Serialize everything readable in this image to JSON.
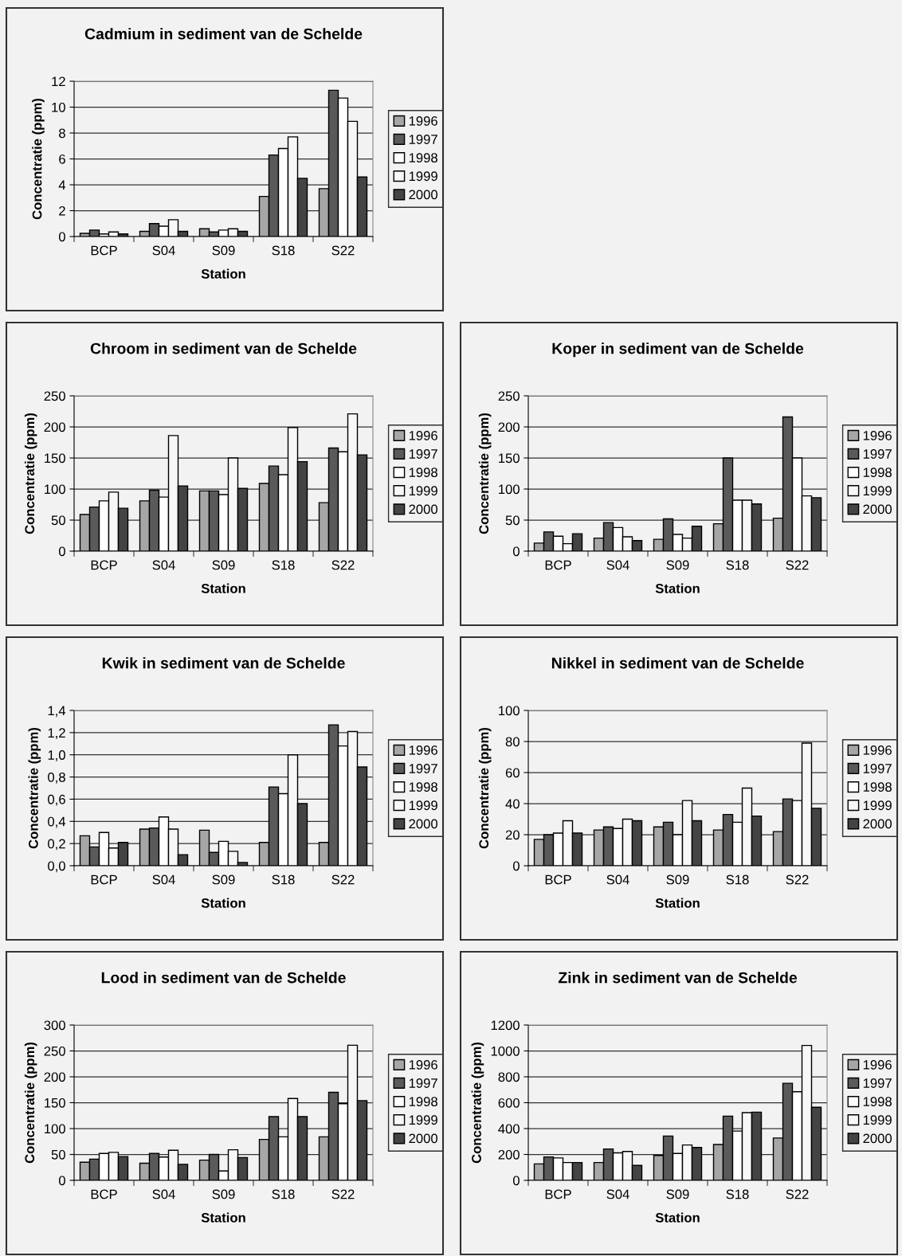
{
  "chart_data": [
    {
      "type": "bar",
      "title": "Cadmium in sediment van de Schelde",
      "xlabel": "Station",
      "ylabel": "Concentratie (ppm)",
      "categories": [
        "BCP",
        "S04",
        "S09",
        "S18",
        "S22"
      ],
      "ylim": [
        0,
        12
      ],
      "yticks": [
        0,
        2,
        4,
        6,
        8,
        10,
        12
      ],
      "grid": "y",
      "legend": "right",
      "series": [
        {
          "name": "1996",
          "color": "#a6a6a6",
          "values": [
            0.25,
            0.4,
            0.6,
            3.1,
            3.7
          ]
        },
        {
          "name": "1997",
          "color": "#5a5a5a",
          "values": [
            0.5,
            1.0,
            0.35,
            6.3,
            11.3
          ]
        },
        {
          "name": "1998",
          "color": "#ffffff",
          "values": [
            0.2,
            0.8,
            0.5,
            6.8,
            10.7
          ]
        },
        {
          "name": "1999",
          "color": "#f7f7f7",
          "values": [
            0.35,
            1.3,
            0.6,
            7.7,
            8.9
          ]
        },
        {
          "name": "2000",
          "color": "#444444",
          "values": [
            0.2,
            0.4,
            0.4,
            4.5,
            4.6
          ]
        }
      ]
    },
    {
      "type": "bar",
      "title": "Chroom in sediment van de Schelde",
      "xlabel": "Station",
      "ylabel": "Concentratie (ppm)",
      "categories": [
        "BCP",
        "S04",
        "S09",
        "S18",
        "S22"
      ],
      "ylim": [
        0,
        250
      ],
      "yticks": [
        0,
        50,
        100,
        150,
        200,
        250
      ],
      "grid": "y",
      "legend": "right",
      "series": [
        {
          "name": "1996",
          "color": "#a6a6a6",
          "values": [
            59,
            81,
            97,
            109,
            78
          ]
        },
        {
          "name": "1997",
          "color": "#5a5a5a",
          "values": [
            71,
            98,
            97,
            137,
            166
          ]
        },
        {
          "name": "1998",
          "color": "#ffffff",
          "values": [
            81,
            87,
            91,
            123,
            160
          ]
        },
        {
          "name": "1999",
          "color": "#f7f7f7",
          "values": [
            95,
            186,
            150,
            199,
            221
          ]
        },
        {
          "name": "2000",
          "color": "#444444",
          "values": [
            69,
            105,
            101,
            144,
            155
          ]
        }
      ]
    },
    {
      "type": "bar",
      "title": "Koper in sediment van de Schelde",
      "xlabel": "Station",
      "ylabel": "Concentratie (ppm)",
      "categories": [
        "BCP",
        "S04",
        "S09",
        "S18",
        "S22"
      ],
      "ylim": [
        0,
        250
      ],
      "yticks": [
        0,
        50,
        100,
        150,
        200,
        250
      ],
      "grid": "y",
      "legend": "right",
      "series": [
        {
          "name": "1996",
          "color": "#a6a6a6",
          "values": [
            13,
            21,
            19,
            44,
            53
          ]
        },
        {
          "name": "1997",
          "color": "#5a5a5a",
          "values": [
            31,
            46,
            52,
            150,
            216
          ]
        },
        {
          "name": "1998",
          "color": "#ffffff",
          "values": [
            24,
            38,
            27,
            82,
            150
          ]
        },
        {
          "name": "1999",
          "color": "#f7f7f7",
          "values": [
            12,
            23,
            21,
            82,
            89
          ]
        },
        {
          "name": "2000",
          "color": "#444444",
          "values": [
            28,
            17,
            40,
            76,
            86
          ]
        }
      ]
    },
    {
      "type": "bar",
      "title": "Kwik in sediment van de Schelde",
      "xlabel": "Station",
      "ylabel": "Concentratie (ppm)",
      "categories": [
        "BCP",
        "S04",
        "S09",
        "S18",
        "S22"
      ],
      "ylim": [
        0,
        1.4
      ],
      "yticks": [
        {
          "value": 0,
          "label": "0,0"
        },
        {
          "value": 0.2,
          "label": "0,2"
        },
        {
          "value": 0.4,
          "label": "0,4"
        },
        {
          "value": 0.6,
          "label": "0,6"
        },
        {
          "value": 0.8,
          "label": "0,8"
        },
        {
          "value": 1.0,
          "label": "1,0"
        },
        {
          "value": 1.2,
          "label": "1,2"
        },
        {
          "value": 1.4,
          "label": "1,4"
        }
      ],
      "grid": "y",
      "legend": "right",
      "series": [
        {
          "name": "1996",
          "color": "#a6a6a6",
          "values": [
            0.27,
            0.33,
            0.32,
            0.21,
            0.21
          ]
        },
        {
          "name": "1997",
          "color": "#5a5a5a",
          "values": [
            0.17,
            0.34,
            0.12,
            0.71,
            1.27
          ]
        },
        {
          "name": "1998",
          "color": "#ffffff",
          "values": [
            0.3,
            0.44,
            0.22,
            0.65,
            1.08
          ]
        },
        {
          "name": "1999",
          "color": "#f7f7f7",
          "values": [
            0.16,
            0.33,
            0.13,
            1.0,
            1.21
          ]
        },
        {
          "name": "2000",
          "color": "#444444",
          "values": [
            0.21,
            0.1,
            0.03,
            0.56,
            0.89
          ]
        }
      ]
    },
    {
      "type": "bar",
      "title": "Nikkel in sediment van de Schelde",
      "xlabel": "Station",
      "ylabel": "Concentratie (ppm)",
      "categories": [
        "BCP",
        "S04",
        "S09",
        "S18",
        "S22"
      ],
      "ylim": [
        0,
        100
      ],
      "yticks": [
        0,
        20,
        40,
        60,
        80,
        100
      ],
      "grid": "y",
      "legend": "right",
      "series": [
        {
          "name": "1996",
          "color": "#a6a6a6",
          "values": [
            17,
            23,
            25,
            23,
            22
          ]
        },
        {
          "name": "1997",
          "color": "#5a5a5a",
          "values": [
            20,
            25,
            28,
            33,
            43
          ]
        },
        {
          "name": "1998",
          "color": "#ffffff",
          "values": [
            21,
            24,
            20,
            28,
            42
          ]
        },
        {
          "name": "1999",
          "color": "#f7f7f7",
          "values": [
            29,
            30,
            42,
            50,
            79
          ]
        },
        {
          "name": "2000",
          "color": "#444444",
          "values": [
            21,
            29,
            29,
            32,
            37
          ]
        }
      ]
    },
    {
      "type": "bar",
      "title": "Lood in sediment van de Schelde",
      "xlabel": "Station",
      "ylabel": "Concentratie (ppm)",
      "categories": [
        "BCP",
        "S04",
        "S09",
        "S18",
        "S22"
      ],
      "ylim": [
        0,
        300
      ],
      "yticks": [
        0,
        50,
        100,
        150,
        200,
        250,
        300
      ],
      "grid": "y",
      "legend": "right",
      "series": [
        {
          "name": "1996",
          "color": "#a6a6a6",
          "values": [
            35,
            33,
            39,
            79,
            84
          ]
        },
        {
          "name": "1997",
          "color": "#5a5a5a",
          "values": [
            41,
            52,
            50,
            123,
            170
          ]
        },
        {
          "name": "1998",
          "color": "#ffffff",
          "values": [
            52,
            45,
            18,
            84,
            148
          ]
        },
        {
          "name": "1999",
          "color": "#f7f7f7",
          "values": [
            54,
            58,
            59,
            158,
            261
          ]
        },
        {
          "name": "2000",
          "color": "#444444",
          "values": [
            46,
            31,
            44,
            123,
            154
          ]
        }
      ]
    },
    {
      "type": "bar",
      "title": "Zink in sediment van de Schelde",
      "xlabel": "Station",
      "ylabel": "Concentratie (ppm)",
      "categories": [
        "BCP",
        "S04",
        "S09",
        "S18",
        "S22"
      ],
      "ylim": [
        0,
        1200
      ],
      "yticks": [
        0,
        200,
        400,
        600,
        800,
        1000,
        1200
      ],
      "grid": "y",
      "legend": "right",
      "series": [
        {
          "name": "1996",
          "color": "#a6a6a6",
          "values": [
            127,
            138,
            192,
            277,
            327
          ]
        },
        {
          "name": "1997",
          "color": "#5a5a5a",
          "values": [
            181,
            242,
            342,
            496,
            750
          ]
        },
        {
          "name": "1998",
          "color": "#ffffff",
          "values": [
            173,
            212,
            208,
            381,
            685
          ]
        },
        {
          "name": "1999",
          "color": "#f7f7f7",
          "values": [
            138,
            223,
            273,
            523,
            1042
          ]
        },
        {
          "name": "2000",
          "color": "#444444",
          "values": [
            138,
            115,
            254,
            527,
            565
          ]
        }
      ]
    }
  ]
}
